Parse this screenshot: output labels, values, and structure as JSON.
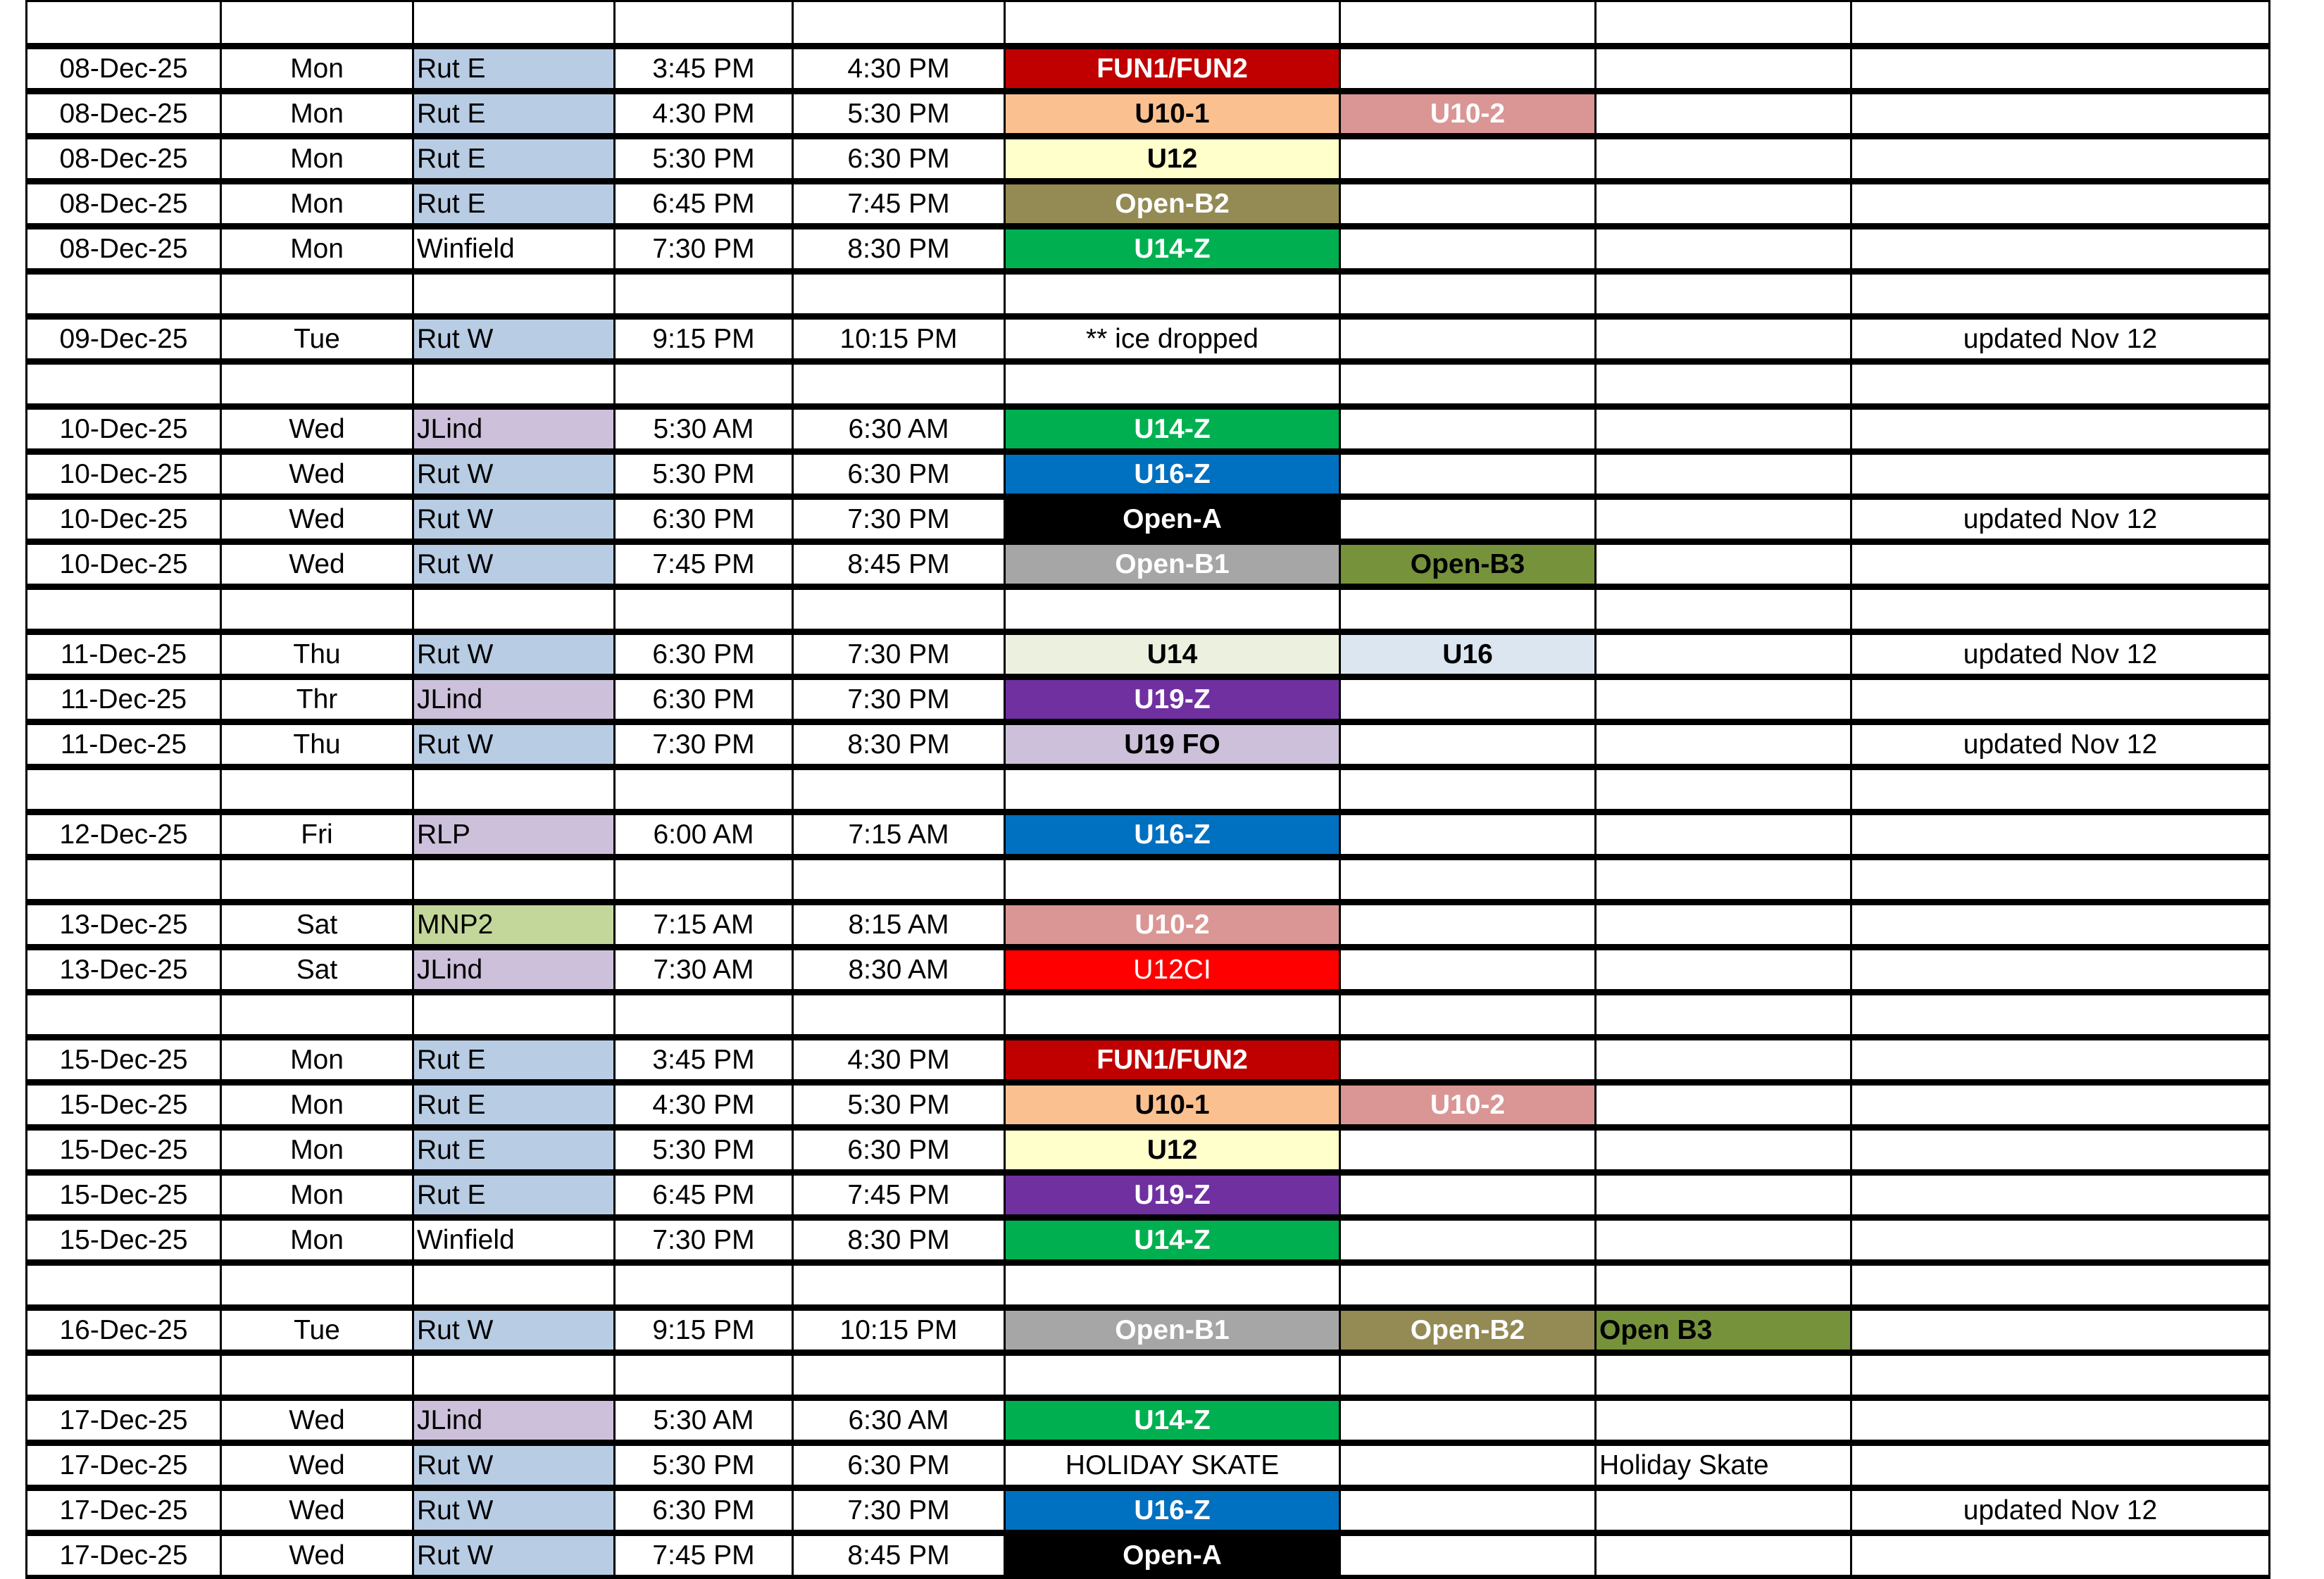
{
  "colors": {
    "fun_red": "#C00000",
    "u10_1_orange": "#FAC090",
    "u10_2_pink": "#DA9694",
    "u12_yellow": "#FFFFCC",
    "open_b2_olive": "#948A54",
    "u14z_green": "#00B050",
    "u16z_blue": "#0070C0",
    "open_a_black": "#000000",
    "open_b1_gray": "#A6A6A6",
    "open_b3_green": "#76933C",
    "u14_pale": "#EBF1DE",
    "u16_pale": "#DCE6F1",
    "u19z_purple": "#7030A0",
    "lavender": "#CCC0DA",
    "rut_blue": "#B8CCE4",
    "mnp2_green": "#C4D79B",
    "u12ci_red": "#FF0000"
  },
  "rows": [
    {
      "date": "08-Dec-25",
      "day": "Mon",
      "rink": "Rut E",
      "rink_bg": "#B8CCE4",
      "start": "3:45 PM",
      "end": "4:30 PM",
      "s1": {
        "label": "FUN1/FUN2",
        "bg": "#C00000",
        "fg": "#FFFFFF"
      },
      "s2": null,
      "s3": null,
      "note": ""
    },
    {
      "date": "08-Dec-25",
      "day": "Mon",
      "rink": "Rut E",
      "rink_bg": "#B8CCE4",
      "start": "4:30 PM",
      "end": "5:30 PM",
      "s1": {
        "label": "U10-1",
        "bg": "#FAC090",
        "fg": "#000000"
      },
      "s2": {
        "label": "U10-2",
        "bg": "#DA9694",
        "fg": "#FFFFFF"
      },
      "s3": null,
      "note": ""
    },
    {
      "date": "08-Dec-25",
      "day": "Mon",
      "rink": "Rut E",
      "rink_bg": "#B8CCE4",
      "start": "5:30 PM",
      "end": "6:30 PM",
      "s1": {
        "label": "U12",
        "bg": "#FFFFCC",
        "fg": "#000000"
      },
      "s2": null,
      "s3": null,
      "note": ""
    },
    {
      "date": "08-Dec-25",
      "day": "Mon",
      "rink": "Rut E",
      "rink_bg": "#B8CCE4",
      "start": "6:45 PM",
      "end": "7:45 PM",
      "s1": {
        "label": "Open-B2",
        "bg": "#948A54",
        "fg": "#FFFFFF"
      },
      "s2": null,
      "s3": null,
      "note": ""
    },
    {
      "date": "08-Dec-25",
      "day": "Mon",
      "rink": "Winfield",
      "rink_bg": "",
      "start": "7:30 PM",
      "end": "8:30 PM",
      "s1": {
        "label": "U14-Z",
        "bg": "#00B050",
        "fg": "#FFFFFF"
      },
      "s2": null,
      "s3": null,
      "note": ""
    },
    null,
    {
      "date": "09-Dec-25",
      "day": "Tue",
      "rink": "Rut W",
      "rink_bg": "#B8CCE4",
      "start": "9:15 PM",
      "end": "10:15 PM",
      "s1": {
        "label": "** ice dropped",
        "bg": "",
        "fg": "#000000",
        "plain": true
      },
      "s2": null,
      "s3": null,
      "note": "updated Nov 12"
    },
    null,
    {
      "date": "10-Dec-25",
      "day": "Wed",
      "rink": "JLind",
      "rink_bg": "#CCC0DA",
      "start": "5:30 AM",
      "end": "6:30 AM",
      "s1": {
        "label": "U14-Z",
        "bg": "#00B050",
        "fg": "#FFFFFF"
      },
      "s2": null,
      "s3": null,
      "note": ""
    },
    {
      "date": "10-Dec-25",
      "day": "Wed",
      "rink": "Rut W",
      "rink_bg": "#B8CCE4",
      "start": "5:30 PM",
      "end": "6:30 PM",
      "s1": {
        "label": "U16-Z",
        "bg": "#0070C0",
        "fg": "#FFFFFF"
      },
      "s2": null,
      "s3": null,
      "note": ""
    },
    {
      "date": "10-Dec-25",
      "day": "Wed",
      "rink": "Rut W",
      "rink_bg": "#B8CCE4",
      "start": "6:30 PM",
      "end": "7:30 PM",
      "s1": {
        "label": "Open-A",
        "bg": "#000000",
        "fg": "#FFFFFF"
      },
      "s2": null,
      "s3": null,
      "note": "updated Nov 12"
    },
    {
      "date": "10-Dec-25",
      "day": "Wed",
      "rink": "Rut W",
      "rink_bg": "#B8CCE4",
      "start": "7:45 PM",
      "end": "8:45 PM",
      "s1": {
        "label": "Open-B1",
        "bg": "#A6A6A6",
        "fg": "#FFFFFF"
      },
      "s2": {
        "label": "Open-B3",
        "bg": "#76933C",
        "fg": "#000000"
      },
      "s3": null,
      "note": ""
    },
    null,
    {
      "date": "11-Dec-25",
      "day": "Thu",
      "rink": "Rut W",
      "rink_bg": "#B8CCE4",
      "start": "6:30 PM",
      "end": "7:30 PM",
      "s1": {
        "label": "U14",
        "bg": "#EBF1DE",
        "fg": "#000000"
      },
      "s2": {
        "label": "U16",
        "bg": "#DCE6F1",
        "fg": "#000000"
      },
      "s3": null,
      "note": "updated Nov 12"
    },
    {
      "date": "11-Dec-25",
      "day": "Thr",
      "rink": "JLind",
      "rink_bg": "#CCC0DA",
      "start": "6:30 PM",
      "end": "7:30 PM",
      "s1": {
        "label": "U19-Z",
        "bg": "#7030A0",
        "fg": "#FFFFFF"
      },
      "s2": null,
      "s3": null,
      "note": ""
    },
    {
      "date": "11-Dec-25",
      "day": "Thu",
      "rink": "Rut W",
      "rink_bg": "#B8CCE4",
      "start": "7:30 PM",
      "end": "8:30 PM",
      "s1": {
        "label": "U19 FO",
        "bg": "#CCC0DA",
        "fg": "#000000"
      },
      "s2": null,
      "s3": null,
      "note": "updated Nov 12"
    },
    null,
    {
      "date": "12-Dec-25",
      "day": "Fri",
      "rink": "RLP",
      "rink_bg": "#CCC0DA",
      "start": "6:00 AM",
      "end": "7:15 AM",
      "s1": {
        "label": "U16-Z",
        "bg": "#0070C0",
        "fg": "#FFFFFF"
      },
      "s2": null,
      "s3": null,
      "note": ""
    },
    null,
    {
      "date": "13-Dec-25",
      "day": "Sat",
      "rink": "MNP2",
      "rink_bg": "#C4D79B",
      "start": "7:15 AM",
      "end": "8:15 AM",
      "s1": {
        "label": "U10-2",
        "bg": "#DA9694",
        "fg": "#FFFFFF"
      },
      "s2": null,
      "s3": null,
      "note": ""
    },
    {
      "date": "13-Dec-25",
      "day": "Sat",
      "rink": "JLind",
      "rink_bg": "#CCC0DA",
      "start": "7:30 AM",
      "end": "8:30 AM",
      "s1": {
        "label": "U12CI",
        "bg": "#FF0000",
        "fg": "#FFFFFF",
        "plain": true
      },
      "s2": null,
      "s3": null,
      "note": ""
    },
    null,
    {
      "date": "15-Dec-25",
      "day": "Mon",
      "rink": "Rut E",
      "rink_bg": "#B8CCE4",
      "start": "3:45 PM",
      "end": "4:30 PM",
      "s1": {
        "label": "FUN1/FUN2",
        "bg": "#C00000",
        "fg": "#FFFFFF"
      },
      "s2": null,
      "s3": null,
      "note": ""
    },
    {
      "date": "15-Dec-25",
      "day": "Mon",
      "rink": "Rut E",
      "rink_bg": "#B8CCE4",
      "start": "4:30 PM",
      "end": "5:30 PM",
      "s1": {
        "label": "U10-1",
        "bg": "#FAC090",
        "fg": "#000000"
      },
      "s2": {
        "label": "U10-2",
        "bg": "#DA9694",
        "fg": "#FFFFFF"
      },
      "s3": null,
      "note": ""
    },
    {
      "date": "15-Dec-25",
      "day": "Mon",
      "rink": "Rut E",
      "rink_bg": "#B8CCE4",
      "start": "5:30 PM",
      "end": "6:30 PM",
      "s1": {
        "label": "U12",
        "bg": "#FFFFCC",
        "fg": "#000000"
      },
      "s2": null,
      "s3": null,
      "note": ""
    },
    {
      "date": "15-Dec-25",
      "day": "Mon",
      "rink": "Rut E",
      "rink_bg": "#B8CCE4",
      "start": "6:45 PM",
      "end": "7:45 PM",
      "s1": {
        "label": "U19-Z",
        "bg": "#7030A0",
        "fg": "#FFFFFF"
      },
      "s2": null,
      "s3": null,
      "note": ""
    },
    {
      "date": "15-Dec-25",
      "day": "Mon",
      "rink": "Winfield",
      "rink_bg": "",
      "start": "7:30 PM",
      "end": "8:30 PM",
      "s1": {
        "label": "U14-Z",
        "bg": "#00B050",
        "fg": "#FFFFFF"
      },
      "s2": null,
      "s3": null,
      "note": ""
    },
    null,
    {
      "date": "16-Dec-25",
      "day": "Tue",
      "rink": "Rut W",
      "rink_bg": "#B8CCE4",
      "start": "9:15 PM",
      "end": "10:15 PM",
      "s1": {
        "label": "Open-B1",
        "bg": "#A6A6A6",
        "fg": "#FFFFFF"
      },
      "s2": {
        "label": "Open-B2",
        "bg": "#948A54",
        "fg": "#FFFFFF"
      },
      "s3": {
        "label": "Open B3",
        "bg": "#76933C",
        "fg": "#000000"
      },
      "note": ""
    },
    null,
    {
      "date": "17-Dec-25",
      "day": "Wed",
      "rink": "JLind",
      "rink_bg": "#CCC0DA",
      "start": "5:30 AM",
      "end": "6:30 AM",
      "s1": {
        "label": "U14-Z",
        "bg": "#00B050",
        "fg": "#FFFFFF"
      },
      "s2": null,
      "s3": null,
      "note": ""
    },
    {
      "date": "17-Dec-25",
      "day": "Wed",
      "rink": "Rut W",
      "rink_bg": "#B8CCE4",
      "start": "5:30 PM",
      "end": "6:30 PM",
      "s1": {
        "label": "HOLIDAY SKATE",
        "bg": "",
        "fg": "#000000",
        "plain": true
      },
      "s2": null,
      "s3": {
        "label": "Holiday Skate",
        "bg": "",
        "fg": "#000000",
        "plain": true
      },
      "note": ""
    },
    {
      "date": "17-Dec-25",
      "day": "Wed",
      "rink": "Rut W",
      "rink_bg": "#B8CCE4",
      "start": "6:30 PM",
      "end": "7:30 PM",
      "s1": {
        "label": "U16-Z",
        "bg": "#0070C0",
        "fg": "#FFFFFF"
      },
      "s2": null,
      "s3": null,
      "note": "updated Nov 12"
    },
    {
      "date": "17-Dec-25",
      "day": "Wed",
      "rink": "Rut W",
      "rink_bg": "#B8CCE4",
      "start": "7:45 PM",
      "end": "8:45 PM",
      "s1": {
        "label": "Open-A",
        "bg": "#000000",
        "fg": "#FFFFFF"
      },
      "s2": null,
      "s3": null,
      "note": ""
    }
  ]
}
